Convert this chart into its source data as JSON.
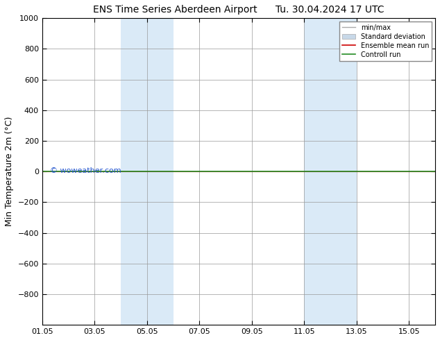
{
  "title": "ENS Time Series Aberdeen Airport      Tu. 30.04.2024 17 UTC",
  "ylabel": "Min Temperature 2m (°C)",
  "ylim_top": -1000,
  "ylim_bottom": 1000,
  "yticks": [
    -800,
    -600,
    -400,
    -200,
    0,
    200,
    400,
    600,
    800,
    1000
  ],
  "xlim": [
    0,
    15
  ],
  "xtick_labels": [
    "01.05",
    "03.05",
    "05.05",
    "07.05",
    "09.05",
    "11.05",
    "13.05",
    "15.05"
  ],
  "xtick_positions": [
    0,
    2,
    4,
    6,
    8,
    10,
    12,
    14
  ],
  "shaded_bands": [
    {
      "start": 3,
      "end": 5
    },
    {
      "start": 10,
      "end": 12
    }
  ],
  "band_color": "#daeaf7",
  "line_y": 0,
  "green_line_color": "#228B22",
  "red_line_color": "#CC0000",
  "watermark": "© woweather.com",
  "watermark_color": "#2255CC",
  "legend_entries": [
    "min/max",
    "Standard deviation",
    "Ensemble mean run",
    "Controll run"
  ],
  "legend_line_colors": [
    "#aaaaaa",
    "#c8d8e8",
    "#CC0000",
    "#228B22"
  ],
  "background_color": "#ffffff",
  "plot_bg_color": "#ffffff",
  "title_fontsize": 10,
  "axis_label_fontsize": 9,
  "tick_fontsize": 8,
  "legend_fontsize": 7
}
